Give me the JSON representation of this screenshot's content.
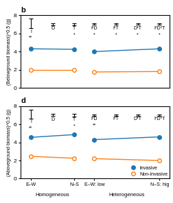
{
  "chart_data": [
    {
      "type": "line",
      "title": "b",
      "y_label": "(Belowground biomass)^0.5 (g)",
      "ylim": [
        0,
        8
      ],
      "yticks": [
        0,
        2,
        4,
        6,
        8
      ],
      "categories": [
        null,
        null,
        null,
        null
      ],
      "groups": [
        {
          "size": 2,
          "effects": [
            {
              "label": "I",
              "y": 7.1,
              "error": 0.55,
              "sig": "**"
            },
            {
              "label": "D",
              "y": 7.0,
              "error": 0.1
            },
            {
              "label": "T",
              "y": 7.0,
              "error": 0.12,
              "sig": "*"
            }
          ]
        },
        {
          "size": 2,
          "effects": [
            {
              "label": "I*D",
              "y": 7.0,
              "error": 0.08,
              "sig": "*"
            },
            {
              "label": "I*T",
              "y": 7.0,
              "error": 0.08,
              "sig": "*"
            },
            {
              "label": "D*T",
              "y": 7.0,
              "error": 0.08,
              "sig": "*"
            },
            {
              "label": "I*D*T",
              "y": 7.0,
              "error": 0.08,
              "sig": "*"
            }
          ]
        }
      ],
      "series": [
        {
          "name": "Invasive",
          "marker": "circle",
          "values": [
            4.3,
            4.25,
            4.0,
            4.3
          ]
        },
        {
          "name": "Non-invasive",
          "marker": "open circle",
          "values": [
            1.95,
            1.95,
            1.75,
            1.8
          ]
        }
      ]
    },
    {
      "type": "line",
      "title": "d",
      "y_label": "(Aboveground biomass)^0.5 (g)",
      "ylim": [
        0,
        8
      ],
      "yticks": [
        0,
        2,
        4,
        6,
        8
      ],
      "categories": [
        "E–W",
        "N–S",
        "E–W: low",
        "N–S: hig"
      ],
      "groups": [
        {
          "label": "Homogeneous",
          "size": 2,
          "effects": [
            {
              "label": "I",
              "y": 7.1,
              "error": 0.5,
              "sig": "**"
            },
            {
              "label": "D",
              "y": 7.0,
              "error": 0.12
            },
            {
              "label": "T",
              "y": 7.0,
              "error": 0.14,
              "sig": "*"
            }
          ]
        },
        {
          "label": "Heterogeneous",
          "size": 2,
          "effects": [
            {
              "label": "I*D",
              "y": 7.0,
              "error": 0.08,
              "sig": "**"
            },
            {
              "label": "I*T",
              "y": 7.0,
              "error": 0.08
            },
            {
              "label": "D*T",
              "y": 7.0,
              "error": 0.08
            },
            {
              "label": "I*D*T",
              "y": 7.0,
              "error": 0.08
            }
          ]
        }
      ],
      "series": [
        {
          "name": "Invasive",
          "marker": "circle",
          "values": [
            4.55,
            4.85,
            4.3,
            4.6
          ]
        },
        {
          "name": "Non-invasive",
          "marker": "open circle",
          "values": [
            2.45,
            2.25,
            2.2,
            2.0
          ]
        }
      ],
      "legend": "lower right"
    }
  ]
}
